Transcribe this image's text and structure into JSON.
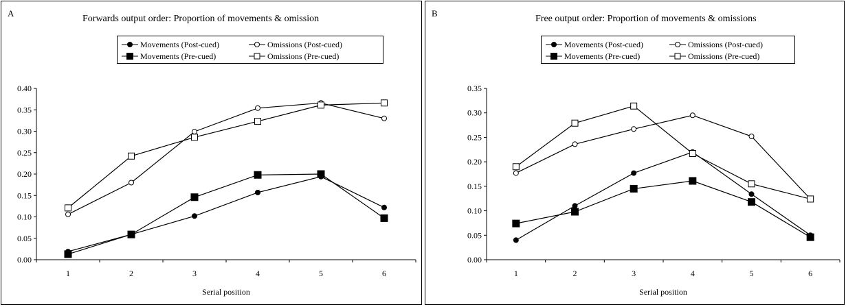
{
  "chart_data": [
    {
      "type": "line",
      "panel_label": "A",
      "title": "Forwards output order: Proportion of movements & omission",
      "xlabel": "Serial position",
      "ylabel": "",
      "x": [
        1,
        2,
        3,
        4,
        5,
        6
      ],
      "x_tick_labels": [
        "1",
        "2",
        "3",
        "4",
        "5",
        "6"
      ],
      "ylim": [
        0,
        0.4
      ],
      "y_ticks": [
        0,
        0.05,
        0.1,
        0.15,
        0.2,
        0.25,
        0.3,
        0.35,
        0.4
      ],
      "y_tick_labels": [
        "0.00",
        "0.05",
        "0.10",
        "0.15",
        "0.20",
        "0.25",
        "0.30",
        "0.35",
        "0.40"
      ],
      "grid": false,
      "legend_position": "top-center",
      "series": [
        {
          "name": "Movements (Post-cued)",
          "marker": "circle-filled",
          "values": [
            0.019,
            0.059,
            0.102,
            0.157,
            0.194,
            0.122
          ]
        },
        {
          "name": "Omissions (Post-cued)",
          "marker": "circle-open",
          "values": [
            0.106,
            0.18,
            0.299,
            0.354,
            0.366,
            0.33
          ]
        },
        {
          "name": "Movements (Pre-cued)",
          "marker": "square-filled",
          "values": [
            0.013,
            0.059,
            0.146,
            0.198,
            0.2,
            0.097
          ]
        },
        {
          "name": "Omissions (Pre-cued)",
          "marker": "square-open",
          "values": [
            0.121,
            0.242,
            0.286,
            0.323,
            0.361,
            0.366
          ]
        }
      ]
    },
    {
      "type": "line",
      "panel_label": "B",
      "title": "Free output order: Proportion of movements & omissions",
      "xlabel": "Serial position",
      "ylabel": "",
      "x": [
        1,
        2,
        3,
        4,
        5,
        6
      ],
      "x_tick_labels": [
        "1",
        "2",
        "3",
        "4",
        "5",
        "6"
      ],
      "ylim": [
        0,
        0.35
      ],
      "y_ticks": [
        0,
        0.05,
        0.1,
        0.15,
        0.2,
        0.25,
        0.3,
        0.35
      ],
      "y_tick_labels": [
        "0.00",
        "0.05",
        "0.10",
        "0.15",
        "0.20",
        "0.25",
        "0.30",
        "0.35"
      ],
      "grid": false,
      "legend_position": "top-center",
      "series": [
        {
          "name": "Movements (Post-cued)",
          "marker": "circle-filled",
          "values": [
            0.04,
            0.11,
            0.177,
            0.22,
            0.134,
            0.05
          ]
        },
        {
          "name": "Omissions (Post-cued)",
          "marker": "circle-open",
          "values": [
            0.177,
            0.236,
            0.267,
            0.295,
            0.252,
            0.124
          ]
        },
        {
          "name": "Movements (Pre-cued)",
          "marker": "square-filled",
          "values": [
            0.074,
            0.098,
            0.145,
            0.161,
            0.118,
            0.046
          ]
        },
        {
          "name": "Omissions (Pre-cued)",
          "marker": "square-open",
          "values": [
            0.19,
            0.279,
            0.314,
            0.217,
            0.155,
            0.124
          ]
        }
      ]
    }
  ]
}
